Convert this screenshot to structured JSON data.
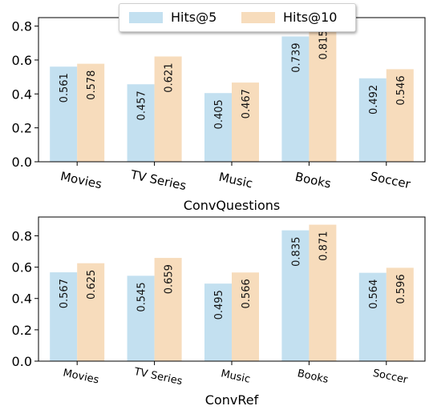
{
  "colors": {
    "hits5": "#c3e0f0",
    "hits10": "#f7dcbc"
  },
  "legend": {
    "items": [
      "Hits@5",
      "Hits@10"
    ]
  },
  "chart_data": [
    {
      "type": "bar",
      "xlabel": "ConvQuestions",
      "categories": [
        "Movies",
        "TV Series",
        "Music",
        "Books",
        "Soccer"
      ],
      "series": [
        {
          "name": "Hits@5",
          "values": [
            0.561,
            0.457,
            0.405,
            0.739,
            0.492
          ]
        },
        {
          "name": "Hits@10",
          "values": [
            0.578,
            0.621,
            0.467,
            0.815,
            0.546
          ]
        }
      ],
      "ylim": [
        0,
        0.85
      ],
      "yticks": [
        "0.0",
        "0.2",
        "0.4",
        "0.6",
        "0.8"
      ],
      "ytick_values": [
        0.0,
        0.2,
        0.4,
        0.6,
        0.8
      ]
    },
    {
      "type": "bar",
      "xlabel": "ConvRef",
      "categories": [
        "Movies",
        "TV Series",
        "Music",
        "Books",
        "Soccer"
      ],
      "series": [
        {
          "name": "Hits@5",
          "values": [
            0.567,
            0.545,
            0.495,
            0.835,
            0.564
          ]
        },
        {
          "name": "Hits@10",
          "values": [
            0.625,
            0.659,
            0.566,
            0.871,
            0.596
          ]
        }
      ],
      "ylim": [
        0,
        0.92
      ],
      "yticks": [
        "0.0",
        "0.2",
        "0.4",
        "0.6",
        "0.8"
      ],
      "ytick_values": [
        0.0,
        0.2,
        0.4,
        0.6,
        0.8
      ]
    }
  ]
}
